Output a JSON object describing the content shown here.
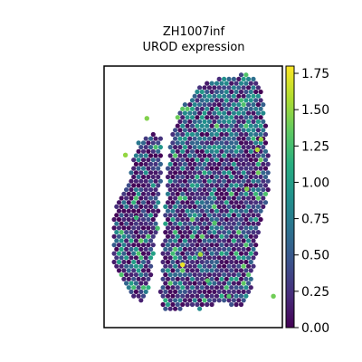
{
  "chart_data": {
    "type": "scatter",
    "title_lines": [
      "ZH1007inf",
      "UROD expression"
    ],
    "xlabel": "",
    "ylabel": "",
    "colormap": "viridis",
    "colorbar": {
      "range": [
        0.0,
        1.8
      ],
      "ticks": [
        "0.00",
        "0.25",
        "0.50",
        "0.75",
        "1.00",
        "1.25",
        "1.50",
        "1.75"
      ],
      "tick_values": [
        0.0,
        0.25,
        0.5,
        0.75,
        1.0,
        1.25,
        1.5,
        1.75
      ]
    },
    "grid": false,
    "hot_spots": [
      {
        "x": 0.44,
        "y": 0.76,
        "value": 1.75
      },
      {
        "x": 0.86,
        "y": 0.32,
        "value": 1.6
      },
      {
        "x": 0.54,
        "y": 0.72,
        "value": 1.55
      },
      {
        "x": 0.12,
        "y": 0.34,
        "value": 1.5
      },
      {
        "x": 0.8,
        "y": 0.47,
        "value": 1.45
      },
      {
        "x": 0.88,
        "y": 0.28,
        "value": 1.5
      },
      {
        "x": 0.24,
        "y": 0.2,
        "value": 1.45
      },
      {
        "x": 0.62,
        "y": 0.6,
        "value": 1.3
      },
      {
        "x": 0.3,
        "y": 0.62,
        "value": 1.25
      },
      {
        "x": 0.7,
        "y": 0.88,
        "value": 1.3
      },
      {
        "x": 0.95,
        "y": 0.88,
        "value": 1.4
      },
      {
        "x": 0.18,
        "y": 0.58,
        "value": 1.2
      },
      {
        "x": 0.58,
        "y": 0.82,
        "value": 1.3
      }
    ]
  }
}
